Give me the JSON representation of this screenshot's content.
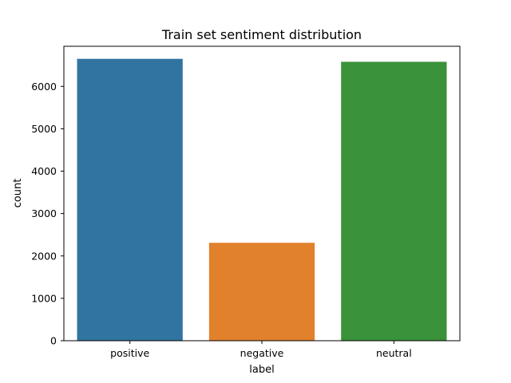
{
  "chart_data": {
    "type": "bar",
    "title": "Train set sentiment distribution",
    "xlabel": "label",
    "ylabel": "count",
    "categories": [
      "positive",
      "negative",
      "neutral"
    ],
    "values": [
      6650,
      2310,
      6580
    ],
    "colors": [
      "#3274a1",
      "#e1812c",
      "#3a923a"
    ],
    "ylim": [
      0,
      6946
    ],
    "yticks": [
      0,
      1000,
      2000,
      3000,
      4000,
      5000,
      6000
    ],
    "grid": false,
    "legend": "none"
  }
}
